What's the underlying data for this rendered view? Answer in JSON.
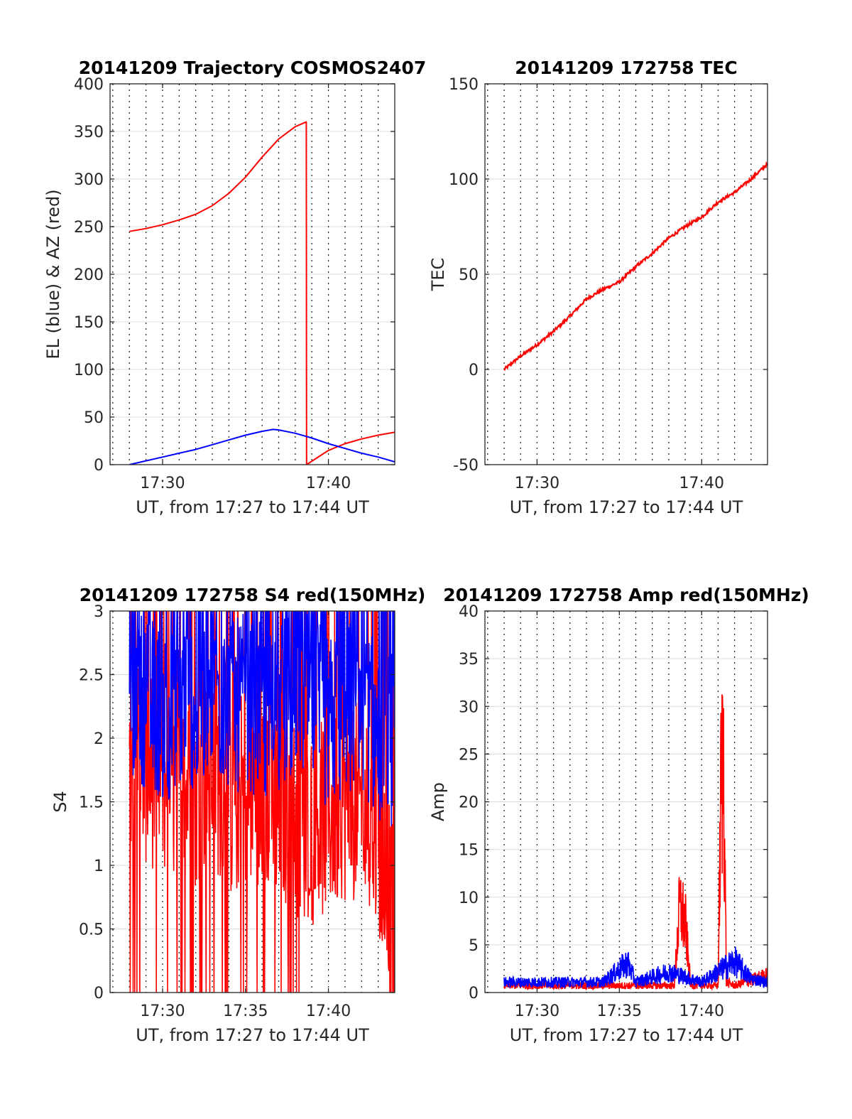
{
  "chart_data": [
    {
      "id": "traj",
      "type": "line",
      "title": "20141209 Trajectory COSMOS2407",
      "xlabel": "UT, from 17:27 to 17:44 UT",
      "ylabel": "EL (blue) & AZ (red)",
      "xlim": [
        "17:26:50",
        "17:44:00"
      ],
      "ylim": [
        0,
        400
      ],
      "yticks": [
        0,
        50,
        100,
        150,
        200,
        250,
        300,
        350,
        400
      ],
      "xticks": [
        "17:30",
        "17:40"
      ],
      "grid": true,
      "series": [
        {
          "color": "#ff0000",
          "x": [
            "17:28:00",
            "17:29:00",
            "17:30:00",
            "17:31:00",
            "17:32:00",
            "17:33:00",
            "17:34:00",
            "17:35:00",
            "17:36:00",
            "17:37:00",
            "17:38:00",
            "17:38:40",
            "17:38:41",
            "17:40:00",
            "17:41:00",
            "17:42:00",
            "17:43:00",
            "17:44:00"
          ],
          "y": [
            245,
            248,
            252,
            257,
            263,
            272,
            285,
            302,
            323,
            342,
            355,
            360,
            0,
            15,
            22,
            27,
            31,
            34
          ]
        },
        {
          "color": "#0000ff",
          "x": [
            "17:28:00",
            "17:29:00",
            "17:30:00",
            "17:31:00",
            "17:32:00",
            "17:33:00",
            "17:34:00",
            "17:35:00",
            "17:36:00",
            "17:36:40",
            "17:37:00",
            "17:38:00",
            "17:39:00",
            "17:40:00",
            "17:41:00",
            "17:42:00",
            "17:43:00",
            "17:44:00"
          ],
          "y": [
            0,
            4,
            8,
            12,
            16,
            21,
            26,
            31,
            35,
            37,
            36.5,
            33,
            28,
            22,
            17,
            12,
            8,
            3
          ]
        }
      ]
    },
    {
      "id": "tec",
      "type": "line",
      "title": "20141209 172758 TEC",
      "xlabel": "UT, from 17:27 to 17:44 UT",
      "ylabel": "TEC",
      "xlim": [
        "17:26:50",
        "17:44:00"
      ],
      "ylim": [
        -50,
        150
      ],
      "yticks": [
        -50,
        0,
        50,
        100,
        150
      ],
      "xticks": [
        "17:30",
        "17:40"
      ],
      "grid": true,
      "series": [
        {
          "color": "#ff0000",
          "x": [
            "17:28:00",
            "17:29:00",
            "17:30:00",
            "17:31:00",
            "17:32:00",
            "17:33:00",
            "17:34:00",
            "17:35:00",
            "17:36:00",
            "17:37:00",
            "17:38:00",
            "17:39:00",
            "17:40:00",
            "17:41:00",
            "17:42:00",
            "17:43:00",
            "17:44:00"
          ],
          "y": [
            0,
            7,
            13,
            20,
            28,
            37,
            42,
            46,
            54,
            61,
            69,
            75,
            80,
            88,
            93,
            100,
            108
          ]
        }
      ]
    },
    {
      "id": "s4",
      "type": "line",
      "title": "20141209 172758 S4 red(150MHz)",
      "xlabel": "UT, from 17:27 to 17:44 UT",
      "ylabel": "S4",
      "xlim": [
        "17:26:50",
        "17:44:00"
      ],
      "ylim": [
        0,
        3
      ],
      "yticks": [
        0,
        0.5,
        1,
        1.5,
        2,
        2.5,
        3
      ],
      "xticks": [
        "17:30",
        "17:35",
        "17:40"
      ],
      "grid": true,
      "series": [
        {
          "color": "#ff0000",
          "x": [
            "17:28:00",
            "17:29:00",
            "17:30:00",
            "17:31:00",
            "17:32:00",
            "17:33:00",
            "17:34:00",
            "17:35:00",
            "17:36:00",
            "17:37:00",
            "17:38:00",
            "17:39:00",
            "17:40:00",
            "17:41:00",
            "17:42:00",
            "17:43:00",
            "17:44:00"
          ],
          "y": [
            2.0,
            1.8,
            1.7,
            1.6,
            1.6,
            1.8,
            1.5,
            1.6,
            1.6,
            1.5,
            1.4,
            1.3,
            1.4,
            1.5,
            1.5,
            1.2,
            0.5
          ]
        },
        {
          "color": "#0000ff",
          "x": [
            "17:28:00",
            "17:29:00",
            "17:30:00",
            "17:31:00",
            "17:32:00",
            "17:33:00",
            "17:34:00",
            "17:35:00",
            "17:36:00",
            "17:37:00",
            "17:38:00",
            "17:39:00",
            "17:40:00",
            "17:41:00",
            "17:42:00",
            "17:43:00",
            "17:44:00"
          ],
          "y": [
            2.4,
            2.3,
            2.2,
            2.2,
            2.3,
            2.4,
            2.2,
            2.3,
            2.2,
            2.2,
            2.4,
            2.3,
            2.1,
            2.2,
            2.3,
            2.0,
            2.0
          ]
        }
      ]
    },
    {
      "id": "amp",
      "type": "line",
      "title": "20141209 172758 Amp red(150MHz)",
      "xlabel": "UT, from 17:27 to 17:44 UT",
      "ylabel": "Amp",
      "xlim": [
        "17:26:50",
        "17:44:00"
      ],
      "ylim": [
        0,
        40
      ],
      "yticks": [
        0,
        5,
        10,
        15,
        20,
        25,
        30,
        35,
        40
      ],
      "xticks": [
        "17:30",
        "17:35",
        "17:40"
      ],
      "grid": true,
      "series": [
        {
          "color": "#ff0000",
          "x": [
            "17:28:00",
            "17:35:00",
            "17:38:20",
            "17:38:40",
            "17:39:00",
            "17:39:20",
            "17:41:00",
            "17:41:10",
            "17:41:20",
            "17:41:30",
            "17:42:00",
            "17:44:00"
          ],
          "y": [
            1.0,
            1.0,
            1.0,
            12.5,
            10.0,
            1.0,
            1.0,
            28.5,
            34.5,
            1.5,
            1.0,
            2.5
          ]
        },
        {
          "color": "#0000ff",
          "x": [
            "17:28:00",
            "17:30:00",
            "17:32:00",
            "17:34:00",
            "17:35:30",
            "17:36:00",
            "17:38:00",
            "17:40:00",
            "17:41:00",
            "17:42:00",
            "17:43:00",
            "17:44:00"
          ],
          "y": [
            1.5,
            1.5,
            1.5,
            1.5,
            4.3,
            1.5,
            3.0,
            1.5,
            3.0,
            4.5,
            2.0,
            1.5
          ]
        }
      ]
    }
  ]
}
